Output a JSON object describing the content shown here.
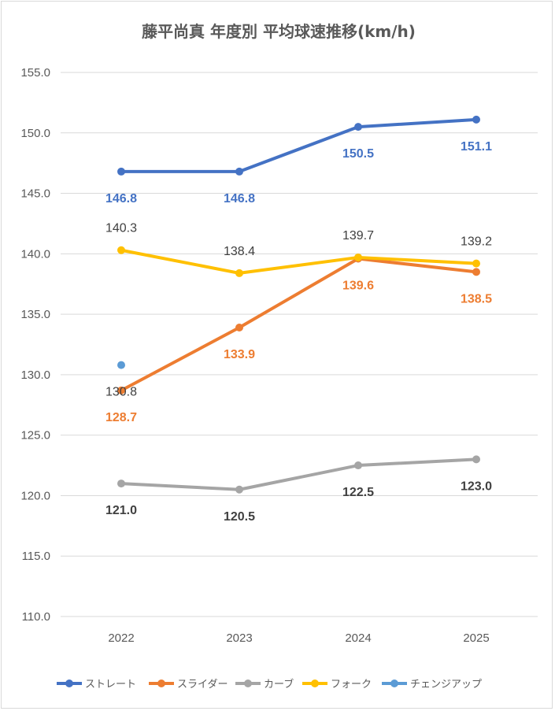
{
  "chart_data": {
    "type": "line",
    "title": "藤平尚真 年度別 平均球速推移(km/h)",
    "categories": [
      "2022",
      "2023",
      "2024",
      "2025"
    ],
    "ylim": [
      110,
      155
    ],
    "ytick_step": 5,
    "ytick_labels": [
      "110.0",
      "115.0",
      "120.0",
      "125.0",
      "130.0",
      "135.0",
      "140.0",
      "145.0",
      "150.0",
      "155.0"
    ],
    "grid": true,
    "legend_position": "bottom",
    "series": [
      {
        "name": "ストレート",
        "color": "#4472C4",
        "values": [
          146.8,
          146.8,
          150.5,
          151.1
        ],
        "labels": [
          "146.8",
          "146.8",
          "150.5",
          "151.1"
        ],
        "label_pos": "below",
        "label_bold": true,
        "label_color": "#4472C4"
      },
      {
        "name": "スライダー",
        "color": "#ED7D31",
        "values": [
          128.7,
          133.9,
          139.6,
          138.5
        ],
        "labels": [
          "128.7",
          "133.9",
          "139.6",
          "138.5"
        ],
        "label_pos": "below",
        "label_bold": true,
        "label_color": "#ED7D31"
      },
      {
        "name": "カーブ",
        "color": "#A5A5A5",
        "values": [
          121.0,
          120.5,
          122.5,
          123.0
        ],
        "labels": [
          "121.0",
          "120.5",
          "122.5",
          "123.0"
        ],
        "label_pos": "below",
        "label_bold": true,
        "label_color": "#404040"
      },
      {
        "name": "フォーク",
        "color": "#FFC000",
        "values": [
          140.3,
          138.4,
          139.7,
          139.2
        ],
        "labels": [
          "140.3",
          "138.4",
          "139.7",
          "139.2"
        ],
        "label_pos": "above",
        "label_bold": false,
        "label_color": "#404040"
      },
      {
        "name": "チェンジアップ",
        "color": "#5B9BD5",
        "values": [
          130.8,
          null,
          null,
          null
        ],
        "labels": [
          "130.8",
          null,
          null,
          null
        ],
        "label_pos": "below",
        "label_bold": false,
        "label_color": "#404040"
      }
    ]
  }
}
